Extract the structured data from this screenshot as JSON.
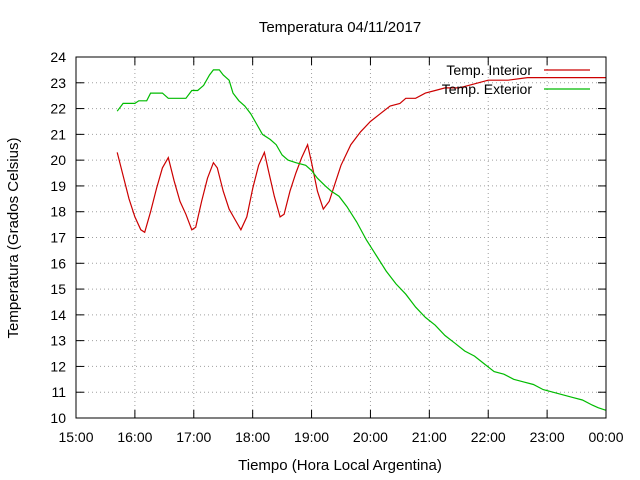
{
  "chart_data": {
    "type": "line",
    "title": "Temperatura 04/11/2017",
    "xlabel": "Tiempo (Hora Local Argentina)",
    "ylabel": "Temperatura (Grados Celsius)",
    "xlim": [
      "15:00",
      "00:00"
    ],
    "ylim": [
      10,
      24
    ],
    "x_ticks": [
      "15:00",
      "16:00",
      "17:00",
      "18:00",
      "19:00",
      "20:00",
      "21:00",
      "22:00",
      "23:00",
      "00:00"
    ],
    "y_ticks": [
      10,
      11,
      12,
      13,
      14,
      15,
      16,
      17,
      18,
      19,
      20,
      21,
      22,
      23,
      24
    ],
    "grid": true,
    "legend_position": "top-right",
    "series": [
      {
        "name": "Temp. Interior",
        "color": "#cc0000",
        "points": [
          [
            "15:42",
            20.3
          ],
          [
            "15:48",
            19.4
          ],
          [
            "15:54",
            18.5
          ],
          [
            "16:00",
            17.8
          ],
          [
            "16:06",
            17.3
          ],
          [
            "16:10",
            17.2
          ],
          [
            "16:16",
            18.0
          ],
          [
            "16:22",
            18.9
          ],
          [
            "16:28",
            19.7
          ],
          [
            "16:34",
            20.1
          ],
          [
            "16:40",
            19.2
          ],
          [
            "16:46",
            18.4
          ],
          [
            "16:52",
            17.9
          ],
          [
            "16:58",
            17.3
          ],
          [
            "17:02",
            17.4
          ],
          [
            "17:08",
            18.4
          ],
          [
            "17:14",
            19.3
          ],
          [
            "17:20",
            19.9
          ],
          [
            "17:24",
            19.7
          ],
          [
            "17:30",
            18.8
          ],
          [
            "17:36",
            18.1
          ],
          [
            "17:42",
            17.7
          ],
          [
            "17:48",
            17.3
          ],
          [
            "17:54",
            17.8
          ],
          [
            "18:00",
            18.9
          ],
          [
            "18:06",
            19.8
          ],
          [
            "18:12",
            20.3
          ],
          [
            "18:16",
            19.6
          ],
          [
            "18:22",
            18.6
          ],
          [
            "18:28",
            17.8
          ],
          [
            "18:32",
            17.9
          ],
          [
            "18:38",
            18.8
          ],
          [
            "18:44",
            19.5
          ],
          [
            "18:50",
            20.1
          ],
          [
            "18:56",
            20.6
          ],
          [
            "19:00",
            19.9
          ],
          [
            "19:06",
            18.8
          ],
          [
            "19:12",
            18.1
          ],
          [
            "19:18",
            18.4
          ],
          [
            "19:24",
            19.1
          ],
          [
            "19:30",
            19.8
          ],
          [
            "19:40",
            20.6
          ],
          [
            "19:50",
            21.1
          ],
          [
            "20:00",
            21.5
          ],
          [
            "20:10",
            21.8
          ],
          [
            "20:20",
            22.1
          ],
          [
            "20:30",
            22.2
          ],
          [
            "20:36",
            22.4
          ],
          [
            "20:46",
            22.4
          ],
          [
            "20:56",
            22.6
          ],
          [
            "21:06",
            22.7
          ],
          [
            "21:16",
            22.8
          ],
          [
            "21:30",
            22.8
          ],
          [
            "21:40",
            22.9
          ],
          [
            "21:50",
            23.0
          ],
          [
            "22:00",
            23.1
          ],
          [
            "22:20",
            23.1
          ],
          [
            "22:40",
            23.2
          ],
          [
            "23:00",
            23.2
          ],
          [
            "23:20",
            23.2
          ],
          [
            "23:40",
            23.2
          ],
          [
            "00:00",
            23.2
          ]
        ]
      },
      {
        "name": "Temp. Exterior",
        "color": "#00bb00",
        "points": [
          [
            "15:42",
            21.9
          ],
          [
            "15:48",
            22.2
          ],
          [
            "16:00",
            22.2
          ],
          [
            "16:04",
            22.3
          ],
          [
            "16:12",
            22.3
          ],
          [
            "16:16",
            22.6
          ],
          [
            "16:28",
            22.6
          ],
          [
            "16:34",
            22.4
          ],
          [
            "16:52",
            22.4
          ],
          [
            "16:58",
            22.7
          ],
          [
            "17:04",
            22.7
          ],
          [
            "17:10",
            22.9
          ],
          [
            "17:16",
            23.3
          ],
          [
            "17:20",
            23.5
          ],
          [
            "17:26",
            23.5
          ],
          [
            "17:30",
            23.3
          ],
          [
            "17:36",
            23.1
          ],
          [
            "17:40",
            22.6
          ],
          [
            "17:46",
            22.3
          ],
          [
            "17:52",
            22.1
          ],
          [
            "17:58",
            21.8
          ],
          [
            "18:04",
            21.4
          ],
          [
            "18:10",
            21.0
          ],
          [
            "18:18",
            20.8
          ],
          [
            "18:24",
            20.6
          ],
          [
            "18:30",
            20.2
          ],
          [
            "18:36",
            20.0
          ],
          [
            "18:44",
            19.9
          ],
          [
            "18:54",
            19.8
          ],
          [
            "19:00",
            19.6
          ],
          [
            "19:06",
            19.3
          ],
          [
            "19:14",
            19.0
          ],
          [
            "19:20",
            18.8
          ],
          [
            "19:28",
            18.6
          ],
          [
            "19:36",
            18.2
          ],
          [
            "19:46",
            17.6
          ],
          [
            "19:56",
            16.9
          ],
          [
            "20:06",
            16.3
          ],
          [
            "20:16",
            15.7
          ],
          [
            "20:26",
            15.2
          ],
          [
            "20:36",
            14.8
          ],
          [
            "20:46",
            14.3
          ],
          [
            "20:56",
            13.9
          ],
          [
            "21:06",
            13.6
          ],
          [
            "21:16",
            13.2
          ],
          [
            "21:26",
            12.9
          ],
          [
            "21:36",
            12.6
          ],
          [
            "21:46",
            12.4
          ],
          [
            "21:56",
            12.1
          ],
          [
            "22:06",
            11.8
          ],
          [
            "22:16",
            11.7
          ],
          [
            "22:26",
            11.5
          ],
          [
            "22:36",
            11.4
          ],
          [
            "22:46",
            11.3
          ],
          [
            "22:56",
            11.1
          ],
          [
            "23:06",
            11.0
          ],
          [
            "23:16",
            10.9
          ],
          [
            "23:26",
            10.8
          ],
          [
            "23:36",
            10.7
          ],
          [
            "23:46",
            10.5
          ],
          [
            "23:52",
            10.4
          ],
          [
            "00:00",
            10.3
          ]
        ]
      }
    ]
  }
}
